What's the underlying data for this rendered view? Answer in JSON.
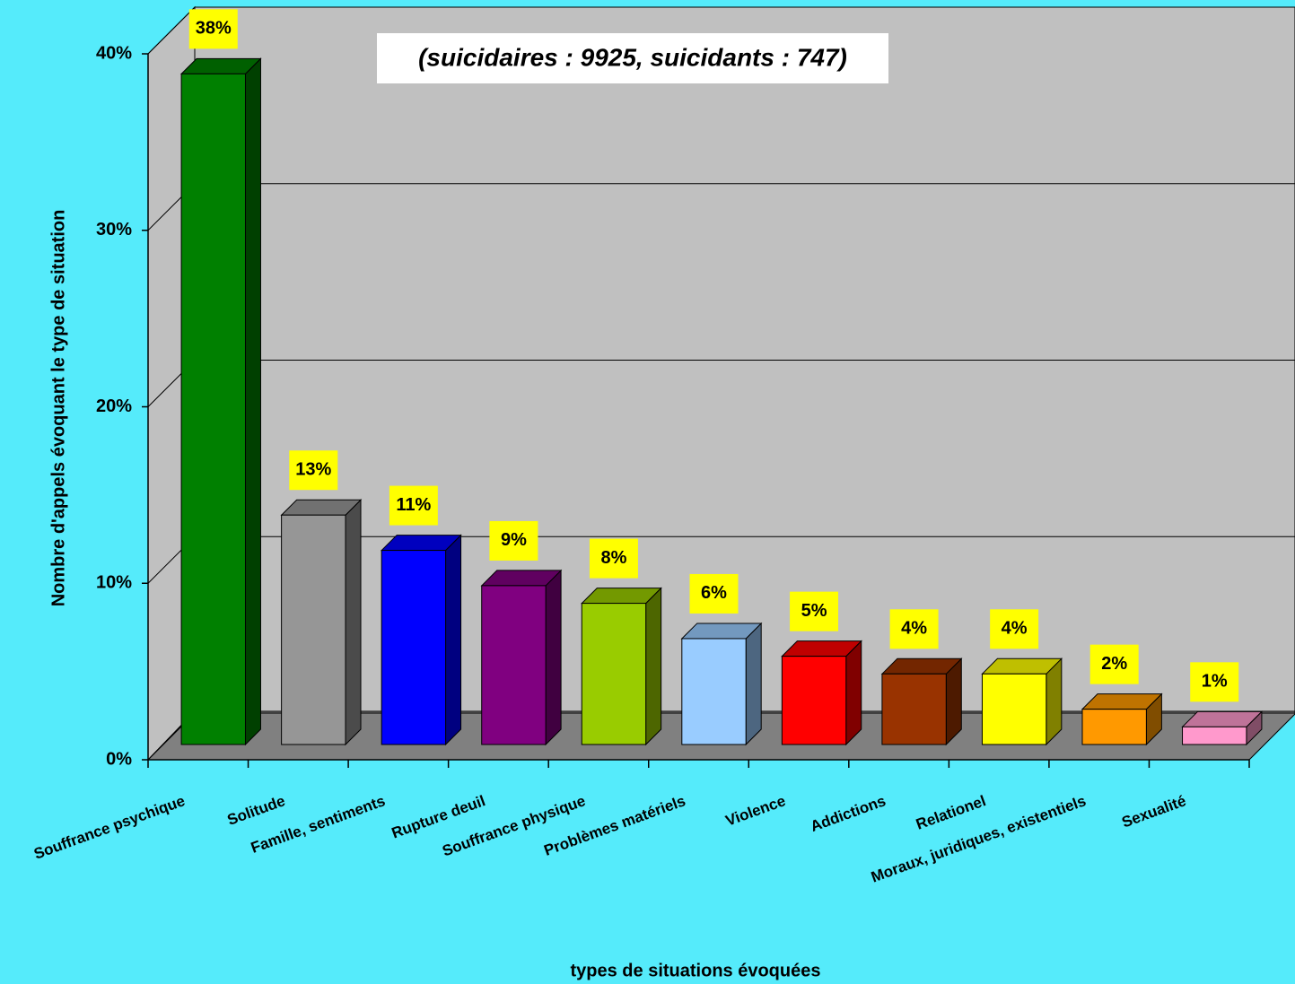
{
  "chart_data": {
    "type": "bar3d",
    "subtitle": "(suicidaires : 9925, suicidants : 747)",
    "ylabel": "Nombre d'appels évoquant le type de situation",
    "xlabel": "types de situations évoquées",
    "categories": [
      "Souffrance psychique",
      "Solitude",
      "Famille, sentiments",
      "Rupture deuil",
      "Souffrance physique",
      "Problèmes matériels",
      "Violence",
      "Addictions",
      "Relationel",
      "Moraux, juridiques,  existentiels",
      "Sexualité"
    ],
    "values": [
      38,
      13,
      11,
      9,
      8,
      6,
      5,
      4,
      4,
      2,
      1
    ],
    "value_labels": [
      "38%",
      "13%",
      "11%",
      "9%",
      "8%",
      "6%",
      "5%",
      "4%",
      "4%",
      "2%",
      "1%"
    ],
    "colors": [
      "#008000",
      "#969696",
      "#0000ff",
      "#800080",
      "#99cc00",
      "#99ccff",
      "#ff0000",
      "#993300",
      "#ffff00",
      "#ff9900",
      "#ff99cc"
    ],
    "ylim": [
      0,
      40
    ],
    "yticks": [
      {
        "value": 0,
        "label": "0%"
      },
      {
        "value": 10,
        "label": "10%"
      },
      {
        "value": 20,
        "label": "20%"
      },
      {
        "value": 30,
        "label": "30%"
      },
      {
        "value": 40,
        "label": "40%"
      }
    ],
    "grid": true
  }
}
